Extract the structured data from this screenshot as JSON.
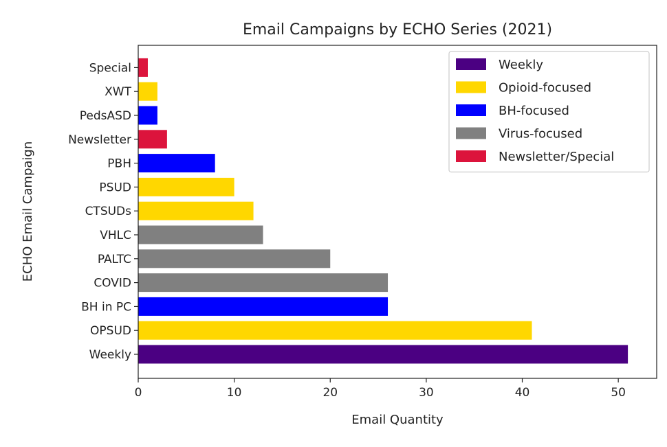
{
  "chart_data": {
    "type": "bar",
    "orientation": "horizontal",
    "title": "Email Campaigns by ECHO Series (2021)",
    "xlabel": "Email Quantity",
    "ylabel": "ECHO Email Campaign",
    "xlim": [
      0,
      54
    ],
    "xticks": [
      0,
      10,
      20,
      30,
      40,
      50
    ],
    "categories": [
      "Weekly",
      "OPSUD",
      "BH in PC",
      "COVID",
      "PALTC",
      "VHLC",
      "CTSUDs",
      "PSUD",
      "PBH",
      "Newsletter",
      "PedsASD",
      "XWT",
      "Special"
    ],
    "values": [
      51,
      41,
      26,
      26,
      20,
      13,
      12,
      10,
      8,
      3,
      2,
      2,
      1
    ],
    "groups": [
      "Weekly",
      "Opioid-focused",
      "BH-focused",
      "Virus-focused",
      "Virus-focused",
      "Virus-focused",
      "Opioid-focused",
      "Opioid-focused",
      "BH-focused",
      "Newsletter/Special",
      "BH-focused",
      "Opioid-focused",
      "Newsletter/Special"
    ],
    "legend": {
      "placement": "upper-right",
      "entries": [
        {
          "name": "Weekly",
          "color": "#4b0082"
        },
        {
          "name": "Opioid-focused",
          "color": "#ffd700"
        },
        {
          "name": "BH-focused",
          "color": "#0000ff"
        },
        {
          "name": "Virus-focused",
          "color": "#808080"
        },
        {
          "name": "Newsletter/Special",
          "color": "#dc143c"
        }
      ]
    },
    "grid": false
  }
}
